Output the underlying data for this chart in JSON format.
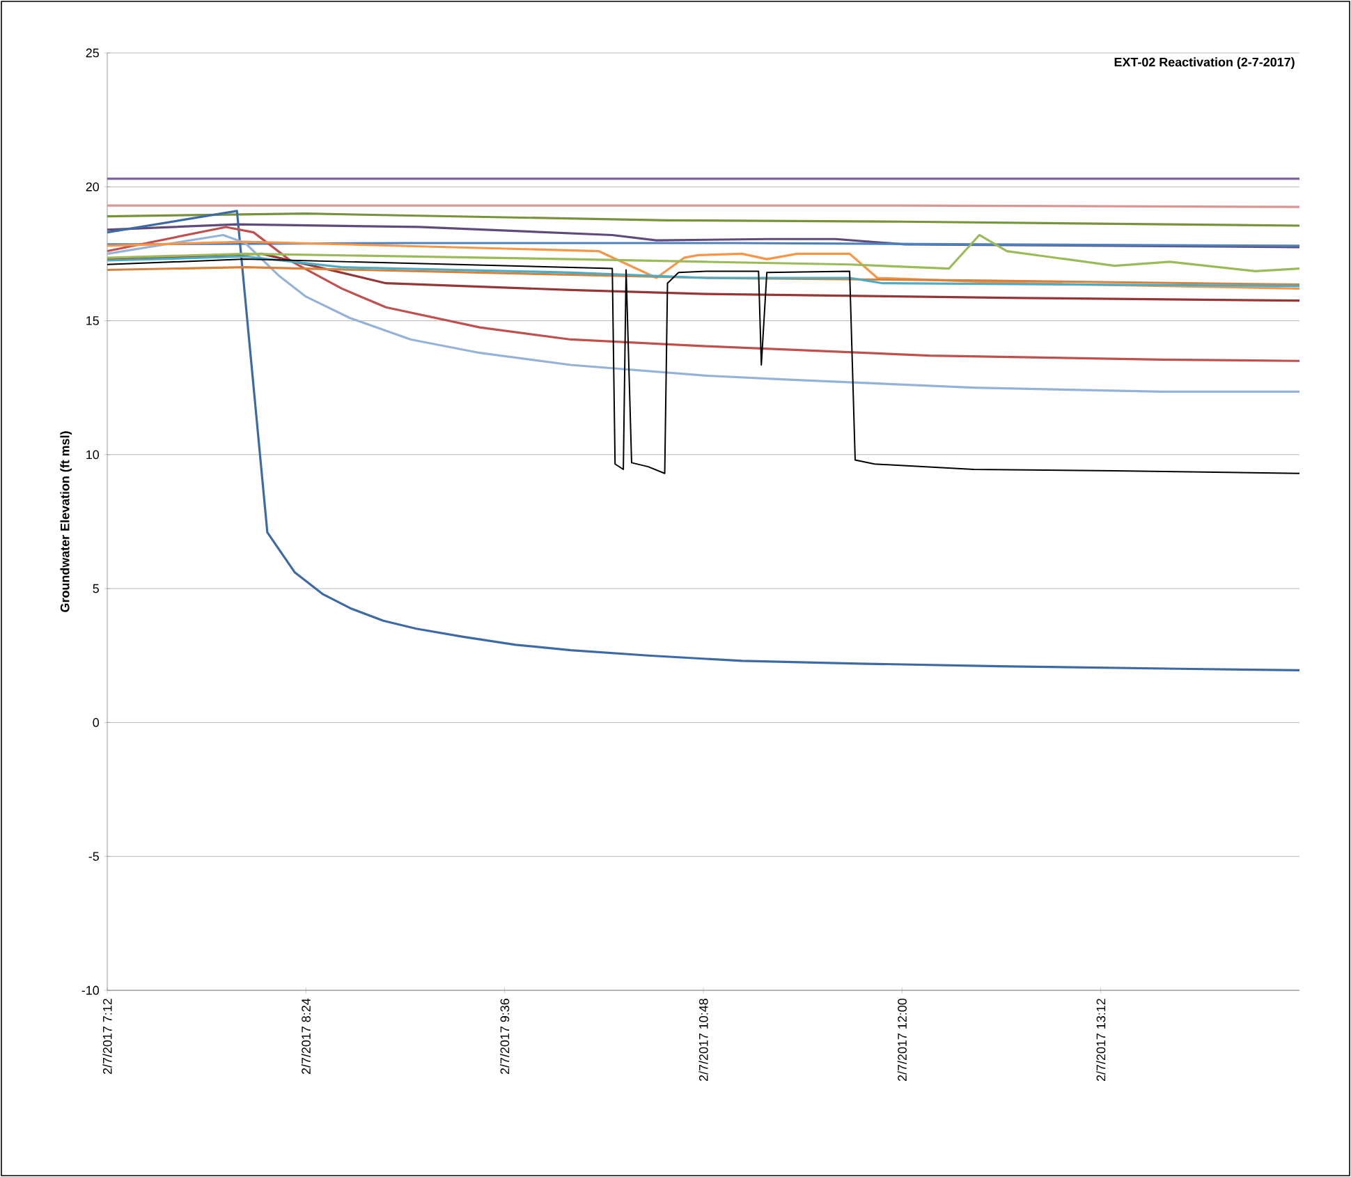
{
  "chart_data": {
    "type": "line",
    "title": "EXT-02 Reactivation (2-7-2017)",
    "ylabel": "Groundwater Elevation (ft msl)",
    "xlim": [
      "2017-02-07T07:12",
      "2017-02-07T14:24"
    ],
    "ylim": [
      -10,
      25
    ],
    "xticks": [
      {
        "value": "2017-02-07T07:12",
        "label": "2/7/2017 7:12"
      },
      {
        "value": "2017-02-07T08:24",
        "label": "2/7/2017 8:24"
      },
      {
        "value": "2017-02-07T09:36",
        "label": "2/7/2017 9:36"
      },
      {
        "value": "2017-02-07T10:48",
        "label": "2/7/2017 10:48"
      },
      {
        "value": "2017-02-07T12:00",
        "label": "2/7/2017 12:00"
      },
      {
        "value": "2017-02-07T13:12",
        "label": "2/7/2017 13:12"
      }
    ],
    "yticks": [
      -10,
      -5,
      0,
      5,
      10,
      15,
      20,
      25
    ],
    "grid": "y",
    "marker": "none",
    "line_style": "solid",
    "series": [
      {
        "color": "#8064a2",
        "x": [
          "2017-02-07T07:12",
          "2017-02-07T10:00",
          "2017-02-07T12:00",
          "2017-02-07T14:24"
        ],
        "values": [
          20.3,
          20.3,
          20.3,
          20.3
        ]
      },
      {
        "color": "#d99694",
        "x": [
          "2017-02-07T07:12",
          "2017-02-07T10:00",
          "2017-02-07T12:00",
          "2017-02-07T14:24"
        ],
        "values": [
          19.3,
          19.3,
          19.3,
          19.25
        ]
      },
      {
        "color": "#77933c",
        "x": [
          "2017-02-07T07:12",
          "2017-02-07T08:24",
          "2017-02-07T10:35",
          "2017-02-07T12:00",
          "2017-02-07T14:24"
        ],
        "values": [
          18.9,
          19.0,
          18.75,
          18.7,
          18.55
        ]
      },
      {
        "color": "#604a7b",
        "x": [
          "2017-02-07T07:12",
          "2017-02-07T07:59",
          "2017-02-07T09:05",
          "2017-02-07T10:15",
          "2017-02-07T10:31",
          "2017-02-07T11:11",
          "2017-02-07T11:36",
          "2017-02-07T12:01",
          "2017-02-07T14:24"
        ],
        "values": [
          18.4,
          18.6,
          18.5,
          18.2,
          18.0,
          18.05,
          18.05,
          17.85,
          17.75
        ]
      },
      {
        "color": "#4f81bd",
        "x": [
          "2017-02-07T07:12",
          "2017-02-07T09:00",
          "2017-02-07T11:00",
          "2017-02-07T12:30",
          "2017-02-07T14:24"
        ],
        "values": [
          17.85,
          17.9,
          17.9,
          17.85,
          17.8
        ]
      },
      {
        "color": "#3d6aa3",
        "x": [
          "2017-02-07T07:12",
          "2017-02-07T07:59",
          "2017-02-07T08:10",
          "2017-02-07T08:20",
          "2017-02-07T08:30",
          "2017-02-07T08:40",
          "2017-02-07T08:52",
          "2017-02-07T09:04",
          "2017-02-07T09:21",
          "2017-02-07T09:40",
          "2017-02-07T10:00",
          "2017-02-07T10:28",
          "2017-02-07T11:02",
          "2017-02-07T11:44",
          "2017-02-07T12:35",
          "2017-02-07T13:45",
          "2017-02-07T14:24"
        ],
        "values": [
          18.3,
          19.1,
          7.1,
          5.6,
          4.8,
          4.27,
          3.8,
          3.5,
          3.2,
          2.9,
          2.7,
          2.5,
          2.3,
          2.2,
          2.1,
          2.0,
          1.95
        ]
      },
      {
        "color": "#c0504d",
        "x": [
          "2017-02-07T07:12",
          "2017-02-07T07:55",
          "2017-02-07T08:05",
          "2017-02-07T08:19",
          "2017-02-07T08:37",
          "2017-02-07T08:53",
          "2017-02-07T09:27",
          "2017-02-07T10:00",
          "2017-02-07T10:49",
          "2017-02-07T12:10",
          "2017-02-07T13:34",
          "2017-02-07T14:24"
        ],
        "values": [
          17.6,
          18.5,
          18.3,
          17.2,
          16.2,
          15.5,
          14.75,
          14.3,
          14.05,
          13.7,
          13.55,
          13.5
        ]
      },
      {
        "color": "#95b3d7",
        "x": [
          "2017-02-07T07:12",
          "2017-02-07T07:54",
          "2017-02-07T08:02",
          "2017-02-07T08:14",
          "2017-02-07T08:24",
          "2017-02-07T08:40",
          "2017-02-07T09:02",
          "2017-02-07T09:27",
          "2017-02-07T10:00",
          "2017-02-07T10:49",
          "2017-02-07T11:19",
          "2017-02-07T12:26",
          "2017-02-07T13:34",
          "2017-02-07T14:24"
        ],
        "values": [
          17.5,
          18.2,
          17.9,
          16.7,
          15.9,
          15.1,
          14.3,
          13.8,
          13.35,
          12.95,
          12.8,
          12.5,
          12.35,
          12.35
        ]
      },
      {
        "color": "#953735",
        "x": [
          "2017-02-07T07:12",
          "2017-02-07T08:08",
          "2017-02-07T08:53",
          "2017-02-07T10:00",
          "2017-02-07T10:49",
          "2017-02-07T12:43",
          "2017-02-07T14:24"
        ],
        "values": [
          17.3,
          17.5,
          16.4,
          16.15,
          16.0,
          15.85,
          15.75
        ]
      },
      {
        "color": "#f79646",
        "x": [
          "2017-02-07T07:12",
          "2017-02-07T08:02",
          "2017-02-07T10:10",
          "2017-02-07T10:31",
          "2017-02-07T10:41",
          "2017-02-07T10:46",
          "2017-02-07T11:02",
          "2017-02-07T11:11",
          "2017-02-07T11:22",
          "2017-02-07T11:41",
          "2017-02-07T11:51",
          "2017-02-07T12:43",
          "2017-02-07T14:24"
        ],
        "values": [
          17.8,
          17.95,
          17.6,
          16.6,
          17.35,
          17.45,
          17.5,
          17.3,
          17.5,
          17.5,
          16.6,
          16.4,
          16.2
        ]
      },
      {
        "color": "#d7813a",
        "x": [
          "2017-02-07T07:12",
          "2017-02-07T08:02",
          "2017-02-07T10:49",
          "2017-02-07T12:30",
          "2017-02-07T14:24"
        ],
        "values": [
          16.9,
          17.0,
          16.6,
          16.5,
          16.35
        ]
      },
      {
        "color": "#4bacc6",
        "x": [
          "2017-02-07T07:12",
          "2017-02-07T08:02",
          "2017-02-07T08:37",
          "2017-02-07T10:00",
          "2017-02-07T10:49",
          "2017-02-07T11:41",
          "2017-02-07T11:53",
          "2017-02-07T14:24"
        ],
        "values": [
          17.25,
          17.4,
          17.0,
          16.8,
          16.6,
          16.6,
          16.4,
          16.3
        ]
      },
      {
        "color": "#9bbb59",
        "x": [
          "2017-02-07T07:12",
          "2017-02-07T08:02",
          "2017-02-07T10:00",
          "2017-02-07T10:49",
          "2017-02-07T11:41",
          "2017-02-07T12:17",
          "2017-02-07T12:28",
          "2017-02-07T12:38",
          "2017-02-07T13:17",
          "2017-02-07T13:37",
          "2017-02-07T14:08",
          "2017-02-07T14:24"
        ],
        "values": [
          17.35,
          17.5,
          17.3,
          17.2,
          17.1,
          16.95,
          18.2,
          17.6,
          17.05,
          17.2,
          16.85,
          16.95
        ]
      },
      {
        "color": "#000000",
        "x": [
          "2017-02-07T07:12",
          "2017-02-07T08:02",
          "2017-02-07T10:15",
          "2017-02-07T10:16",
          "2017-02-07T10:19",
          "2017-02-07T10:20",
          "2017-02-07T10:22",
          "2017-02-07T10:28",
          "2017-02-07T10:34",
          "2017-02-07T10:35",
          "2017-02-07T10:39",
          "2017-02-07T10:49",
          "2017-02-07T11:08",
          "2017-02-07T11:09",
          "2017-02-07T11:11",
          "2017-02-07T11:41",
          "2017-02-07T11:43",
          "2017-02-07T11:50",
          "2017-02-07T12:26",
          "2017-02-07T13:17",
          "2017-02-07T14:24"
        ],
        "values": [
          17.1,
          17.3,
          16.95,
          9.65,
          9.45,
          16.9,
          9.7,
          9.55,
          9.3,
          16.4,
          16.8,
          16.85,
          16.85,
          13.35,
          16.8,
          16.85,
          9.8,
          9.65,
          9.45,
          9.4,
          9.3
        ]
      }
    ]
  }
}
